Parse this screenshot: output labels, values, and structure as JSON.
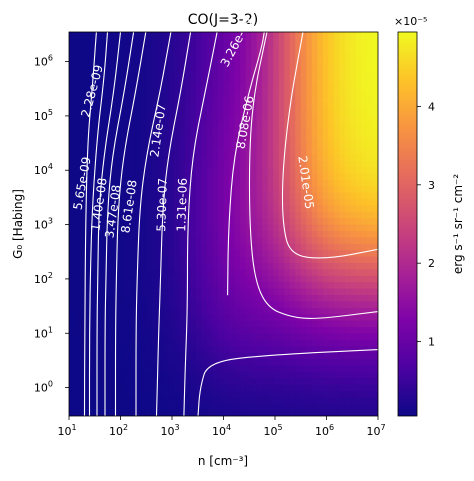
{
  "chart_data": {
    "type": "heatmap",
    "title": "CO(J=3-2)",
    "xlabel": "n [cm⁻³]",
    "ylabel": "G₀ [Habing]",
    "xscale": "log",
    "yscale": "log",
    "xlim": [
      10,
      10000000
    ],
    "ylim": [
      0.3,
      3500000
    ],
    "x_ticks": [
      {
        "value": 10,
        "base": "10",
        "exp": "1"
      },
      {
        "value": 100,
        "base": "10",
        "exp": "2"
      },
      {
        "value": 1000,
        "base": "10",
        "exp": "3"
      },
      {
        "value": 10000,
        "base": "10",
        "exp": "4"
      },
      {
        "value": 100000,
        "base": "10",
        "exp": "5"
      },
      {
        "value": 1000000,
        "base": "10",
        "exp": "6"
      },
      {
        "value": 10000000,
        "base": "10",
        "exp": "7"
      }
    ],
    "y_ticks": [
      {
        "value": 1,
        "base": "10",
        "exp": "0"
      },
      {
        "value": 10,
        "base": "10",
        "exp": "1"
      },
      {
        "value": 100,
        "base": "10",
        "exp": "2"
      },
      {
        "value": 1000,
        "base": "10",
        "exp": "3"
      },
      {
        "value": 10000,
        "base": "10",
        "exp": "4"
      },
      {
        "value": 100000,
        "base": "10",
        "exp": "5"
      },
      {
        "value": 1000000,
        "base": "10",
        "exp": "6"
      }
    ],
    "colormap": "plasma",
    "colorbar": {
      "label": "erg s⁻¹ sr⁻¹ cm⁻²",
      "scale_label": "×10⁻⁵",
      "range": [
        5e-07,
        4.95e-05
      ],
      "ticks": [
        {
          "value": 1e-05,
          "label": "1"
        },
        {
          "value": 2e-05,
          "label": "2"
        },
        {
          "value": 3e-05,
          "label": "3"
        },
        {
          "value": 4e-05,
          "label": "4"
        }
      ]
    },
    "contours": [
      {
        "label": "2.28e-09",
        "value": 2.28e-09,
        "points": [
          [
            20,
            0.3
          ],
          [
            20.2,
            10
          ],
          [
            21,
            1000
          ],
          [
            23,
            30000
          ],
          [
            27,
            200000
          ],
          [
            31,
            1000000
          ],
          [
            34,
            3500000
          ]
        ]
      },
      {
        "label": "5.65e-09",
        "value": 5.65e-09,
        "points": [
          [
            25,
            0.3
          ],
          [
            25,
            10
          ],
          [
            26.5,
            300
          ],
          [
            29,
            3000
          ],
          [
            36,
            50000
          ],
          [
            48,
            500000
          ],
          [
            56,
            3500000
          ]
        ]
      },
      {
        "label": "1.40e-08",
        "value": 1.4e-08,
        "points": [
          [
            35,
            0.3
          ],
          [
            35,
            10
          ],
          [
            36,
            100
          ],
          [
            38,
            2000
          ],
          [
            48,
            20000
          ],
          [
            75,
            300000
          ],
          [
            100,
            3500000
          ]
        ]
      },
      {
        "label": "3.47e-08",
        "value": 3.47e-08,
        "points": [
          [
            50,
            0.3
          ],
          [
            50,
            10
          ],
          [
            52,
            100
          ],
          [
            56,
            2000
          ],
          [
            70,
            20000
          ],
          [
            120,
            300000
          ],
          [
            180,
            3500000
          ]
        ]
      },
      {
        "label": "8.61e-08",
        "value": 8.61e-08,
        "points": [
          [
            80,
            0.3
          ],
          [
            80,
            10
          ],
          [
            83,
            100
          ],
          [
            90,
            2000
          ],
          [
            115,
            20000
          ],
          [
            200,
            300000
          ],
          [
            310,
            3500000
          ]
        ]
      },
      {
        "label": "2.14e-07",
        "value": 2.14e-07,
        "points": [
          [
            200,
            0.3
          ],
          [
            200,
            10
          ],
          [
            210,
            100
          ],
          [
            235,
            2000
          ],
          [
            320,
            20000
          ],
          [
            600,
            300000
          ],
          [
            950,
            3500000
          ]
        ]
      },
      {
        "label": "5.30e-07",
        "value": 5.3e-07,
        "points": [
          [
            500,
            0.3
          ],
          [
            550,
            10
          ],
          [
            600,
            100
          ],
          [
            660,
            2000
          ],
          [
            850,
            20000
          ],
          [
            1500,
            300000
          ],
          [
            2300,
            3500000
          ]
        ]
      },
      {
        "label": "1.31e-06",
        "value": 1.31e-06,
        "points": [
          [
            1700,
            0.3
          ],
          [
            1800,
            2
          ],
          [
            2000,
            30
          ],
          [
            2000,
            1000
          ],
          [
            2500,
            20000
          ],
          [
            4500,
            300000
          ],
          [
            7500,
            3500000
          ]
        ]
      },
      {
        "label": "3.26e-06",
        "value": 3.26e-06,
        "points": [
          [
            3200,
            0.3
          ],
          [
            3500,
            1
          ],
          [
            5000,
            3
          ],
          [
            80000,
            4
          ],
          [
            10000000,
            5
          ]
        ]
      },
      {
        "label": "3.26e-06",
        "value": 3.26e-06,
        "points": [
          [
            12000,
            50
          ],
          [
            12500,
            1000
          ],
          [
            16000,
            20000
          ],
          [
            32000,
            300000
          ],
          [
            55000,
            1800000
          ],
          [
            62000,
            3500000
          ]
        ]
      },
      {
        "label": "8.08e-06",
        "value": 8.08e-06,
        "points": [
          [
            10000000,
            25
          ],
          [
            600000,
            18
          ],
          [
            200000,
            20
          ],
          [
            70000,
            30
          ],
          [
            40000,
            100
          ],
          [
            32000,
            1000
          ],
          [
            32000,
            30000
          ],
          [
            40000,
            300000
          ],
          [
            70000,
            3500000
          ]
        ]
      },
      {
        "label": "2.01e-05",
        "value": 2.01e-05,
        "points": [
          [
            10000000,
            350
          ],
          [
            1000000,
            230
          ],
          [
            200000,
            270
          ],
          [
            140000,
            1000
          ],
          [
            140000,
            10000
          ],
          [
            200000,
            200000
          ],
          [
            350000,
            3500000
          ]
        ]
      }
    ]
  }
}
